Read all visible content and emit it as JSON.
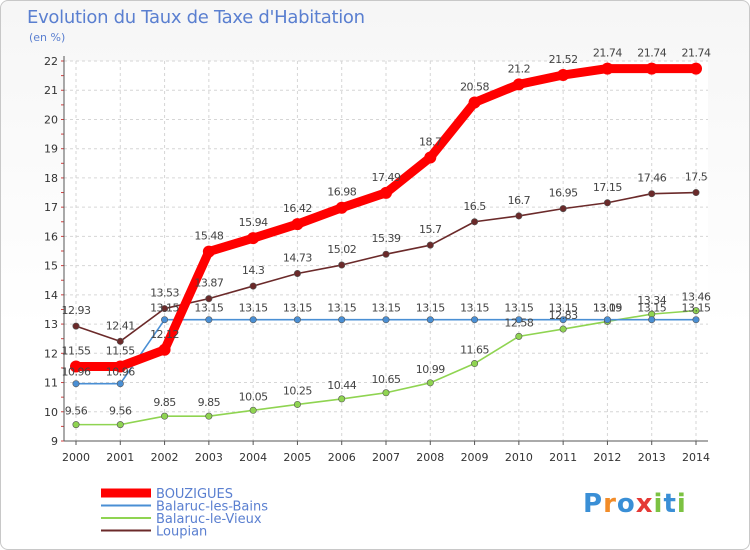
{
  "title": "Evolution du Taux de Taxe d'Habitation",
  "unit": "(en %)",
  "logo": {
    "text": "Proxiti",
    "colors": [
      "#3a8fd6",
      "#f28c28",
      "#3a8fd6",
      "#e53935",
      "#7cc242",
      "#3a8fd6",
      "#7cc242"
    ]
  },
  "chart_data": {
    "type": "line",
    "x": [
      2000,
      2001,
      2002,
      2003,
      2004,
      2005,
      2006,
      2007,
      2008,
      2009,
      2010,
      2011,
      2012,
      2013,
      2014
    ],
    "ylim": [
      9,
      22
    ],
    "yticks": [
      9,
      10,
      11,
      12,
      13,
      14,
      15,
      16,
      17,
      18,
      19,
      20,
      21,
      22
    ],
    "grid": true,
    "legend_position": "bottom-left",
    "series": [
      {
        "name": "BOUZIGUES",
        "color": "#ff0000",
        "values": [
          11.55,
          11.55,
          12.12,
          15.48,
          15.94,
          16.42,
          16.98,
          17.49,
          18.7,
          20.58,
          21.2,
          21.52,
          21.74,
          21.74,
          21.74
        ],
        "labels": [
          "11.55",
          "11.55",
          "12.12",
          "15.48",
          "15.94",
          "16.42",
          "16.98",
          "17.49",
          "18.7",
          "20.58",
          "21.2",
          "21.52",
          "21.74",
          "21.74",
          "21.74"
        ]
      },
      {
        "name": "Balaruc-les-Bains",
        "color": "#4a8fd4",
        "values": [
          10.96,
          10.96,
          13.15,
          13.15,
          13.15,
          13.15,
          13.15,
          13.15,
          13.15,
          13.15,
          13.15,
          13.15,
          13.15,
          13.15,
          13.15
        ],
        "labels": [
          "10.96",
          "10.96",
          "13.15",
          "13.15",
          "13.15",
          "13.15",
          "13.15",
          "13.15",
          "13.15",
          "13.15",
          "13.15",
          "13.15",
          "13.15",
          "13.15",
          "13.15"
        ]
      },
      {
        "name": "Balaruc-le-Vieux",
        "color": "#8fd451",
        "values": [
          9.56,
          9.56,
          9.85,
          9.85,
          10.05,
          10.25,
          10.44,
          10.65,
          10.99,
          11.65,
          12.58,
          12.83,
          13.09,
          13.34,
          13.46
        ],
        "labels": [
          "9.56",
          "9.56",
          "9.85",
          "9.85",
          "10.05",
          "10.25",
          "10.44",
          "10.65",
          "10.99",
          "11.65",
          "12.58",
          "12.83",
          "13.09",
          "13.34",
          "13.46"
        ]
      },
      {
        "name": "Loupian",
        "color": "#6b2a2a",
        "values": [
          12.93,
          12.41,
          13.53,
          13.87,
          14.3,
          14.73,
          15.02,
          15.39,
          15.7,
          16.5,
          16.7,
          16.95,
          17.15,
          17.46,
          17.5
        ],
        "labels": [
          "12.93",
          "12.41",
          "13.53",
          "13.87",
          "14.3",
          "14.73",
          "15.02",
          "15.39",
          "15.7",
          "16.5",
          "16.7",
          "16.95",
          "17.15",
          "17.46",
          "17.5"
        ]
      }
    ]
  }
}
